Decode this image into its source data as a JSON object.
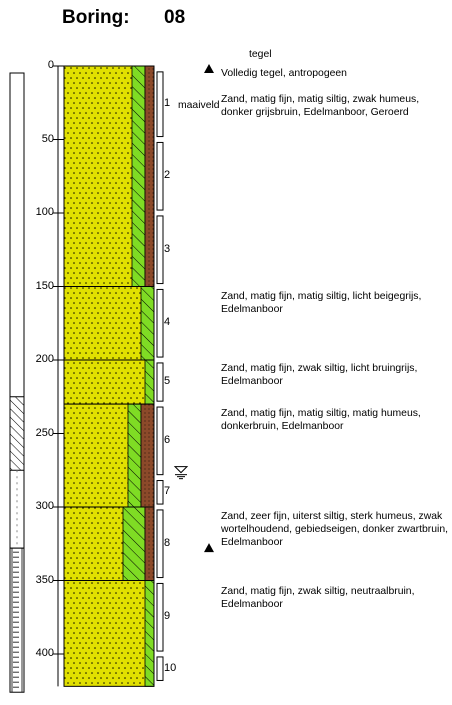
{
  "header": {
    "title_label": "Boring:",
    "boring_number": "08"
  },
  "depth_axis": {
    "unit": "cm",
    "ticks": [
      0,
      50,
      100,
      150,
      200,
      250,
      300,
      350,
      400
    ],
    "max_depth": 422
  },
  "surface": {
    "tegel_label": "tegel",
    "maaiveld_label": "maaiveld"
  },
  "groundwater_depth": 278,
  "layers": [
    {
      "top": 0,
      "bottom": 150,
      "humus": "high",
      "silt": "high",
      "description": "Volledig tegel, antropogeen\n\nZand, matig fijn, matig siltig, zwak humeus, donker grijsbruin, Edelmanboor, Geroerd"
    },
    {
      "top": 150,
      "bottom": 200,
      "humus": "none",
      "silt": "mid",
      "description": "Zand, matig fijn, matig siltig, licht beigegrijs,  Edelmanboor"
    },
    {
      "top": 200,
      "bottom": 230,
      "humus": "none",
      "silt": "low",
      "description": "Zand, matig fijn, zwak siltig, licht bruingrijs, Edelmanboor"
    },
    {
      "top": 230,
      "bottom": 300,
      "humus": "mid",
      "silt": "mid",
      "description": "Zand, matig fijn, matig siltig, matig humeus, donkerbruin, Edelmanboor"
    },
    {
      "top": 300,
      "bottom": 350,
      "humus": "high",
      "silt": "high",
      "description": "Zand, zeer fijn, uiterst siltig, sterk humeus, zwak wortelhoudend, gebiedseigen, donker zwartbruin, Edelmanboor"
    },
    {
      "top": 350,
      "bottom": 422,
      "humus": "none",
      "silt": "low",
      "description": "Zand, matig fijn, zwak siltig, neutraalbruin, Edelmanboor"
    }
  ],
  "samples": [
    {
      "label": "1",
      "top": 4,
      "bottom": 48
    },
    {
      "label": "2",
      "top": 52,
      "bottom": 98
    },
    {
      "label": "3",
      "top": 102,
      "bottom": 148
    },
    {
      "label": "4",
      "top": 152,
      "bottom": 198
    },
    {
      "label": "5",
      "top": 202,
      "bottom": 228
    },
    {
      "label": "6",
      "top": 232,
      "bottom": 278
    },
    {
      "label": "7",
      "top": 282,
      "bottom": 298
    },
    {
      "label": "8",
      "top": 302,
      "bottom": 348
    },
    {
      "label": "9",
      "top": 352,
      "bottom": 398
    },
    {
      "label": "10",
      "top": 402,
      "bottom": 418
    }
  ],
  "sample_markers": [
    {
      "depth": 2
    },
    {
      "depth": 328
    }
  ],
  "well": {
    "blind_top": 0,
    "blind_bottom": 328,
    "filter_top": 328,
    "filter_bottom": 426,
    "seal_top": 225,
    "seal_bottom": 275
  },
  "colors": {
    "sand": "#e1e000",
    "silt": "#7fdc24",
    "humus": "#8c4a2a"
  }
}
